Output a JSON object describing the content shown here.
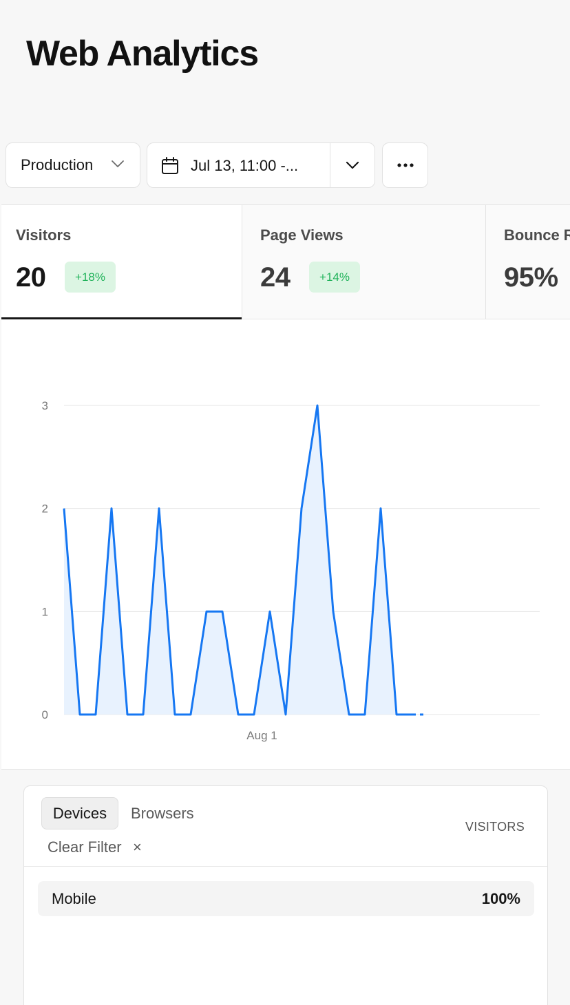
{
  "header": {
    "title": "Web Analytics"
  },
  "toolbar": {
    "environment": "Production",
    "date_range": "Jul 13, 11:00 -...",
    "icons": {
      "environment": "chevron-down-icon",
      "date": "calendar-icon",
      "date_dropdown": "chevron-down-icon",
      "more": "more-horizontal-icon"
    }
  },
  "metrics": [
    {
      "label": "Visitors",
      "value": "20",
      "change": "+18%",
      "active": true
    },
    {
      "label": "Page Views",
      "value": "24",
      "change": "+14%",
      "active": false
    },
    {
      "label": "Bounce R",
      "value": "95%",
      "active": false
    }
  ],
  "chart_data": {
    "type": "area",
    "series": [
      {
        "values": [
          2,
          0,
          0,
          2,
          0,
          0,
          2,
          0,
          0,
          1,
          1,
          0,
          0,
          1,
          0,
          2,
          3,
          1,
          0,
          0,
          2,
          0,
          0
        ],
        "color": "#1677f2"
      }
    ],
    "yticks": [
      "0",
      "1",
      "2",
      "3"
    ],
    "ylim": [
      0,
      3
    ],
    "xtick_labels": [
      {
        "label": "Aug 1",
        "index": 12.5
      }
    ],
    "grid": true,
    "colors": {
      "line": "#1677f2",
      "fill": "#e8f2fe",
      "grid": "#e6e6e6"
    }
  },
  "devices": {
    "tabs": [
      "Devices",
      "Browsers"
    ],
    "active_tab": "Devices",
    "column_header": "VISITORS",
    "clear_filter": "Clear Filter",
    "clear_icon": "close-icon",
    "rows": [
      {
        "name": "Mobile",
        "share": "100%"
      }
    ]
  },
  "colors": {
    "accent": "#1677f2",
    "positive_bg": "#dcf5e3",
    "positive_text": "#20b25a"
  }
}
